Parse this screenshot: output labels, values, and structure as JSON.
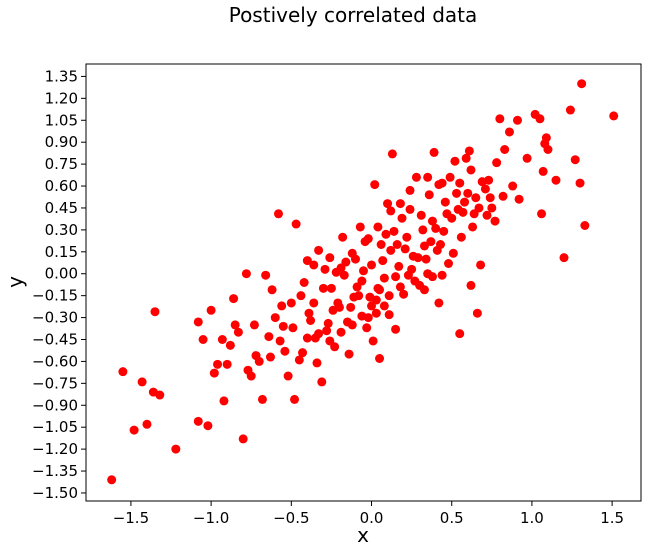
{
  "chart_data": {
    "type": "scatter",
    "title": "Postively correlated data",
    "xlabel": "x",
    "ylabel": "y",
    "xlim": [
      -1.78,
      1.68
    ],
    "ylim": [
      -1.555,
      1.435
    ],
    "xticks": [
      -1.5,
      -1.0,
      -0.5,
      0.0,
      0.5,
      1.0,
      1.5
    ],
    "xtick_labels": [
      "−1.5",
      "−1.0",
      "−0.5",
      "0.0",
      "0.5",
      "1.0",
      "1.5"
    ],
    "yticks": [
      -1.5,
      -1.35,
      -1.2,
      -1.05,
      -0.9,
      -0.75,
      -0.6,
      -0.45,
      -0.3,
      -0.15,
      0.0,
      0.15,
      0.3,
      0.45,
      0.6,
      0.75,
      0.9,
      1.05,
      1.2,
      1.35
    ],
    "ytick_labels": [
      "−1.50",
      "−1.35",
      "−1.20",
      "−1.05",
      "−0.90",
      "−0.75",
      "−0.60",
      "−0.45",
      "−0.30",
      "−0.15",
      "0.00",
      "0.15",
      "0.30",
      "0.45",
      "0.60",
      "0.75",
      "0.90",
      "1.05",
      "1.20",
      "1.35"
    ],
    "grid": false,
    "marker_color": "#ff0000",
    "points": [
      [
        -1.62,
        -1.41
      ],
      [
        -1.55,
        -0.67
      ],
      [
        -1.48,
        -1.07
      ],
      [
        -1.43,
        -0.74
      ],
      [
        -1.4,
        -1.03
      ],
      [
        -1.36,
        -0.81
      ],
      [
        -1.32,
        -0.83
      ],
      [
        -1.35,
        -0.26
      ],
      [
        -1.22,
        -1.2
      ],
      [
        -1.08,
        -1.01
      ],
      [
        -1.02,
        -1.04
      ],
      [
        -1.08,
        -0.33
      ],
      [
        -1.05,
        -0.45
      ],
      [
        -1.0,
        -0.25
      ],
      [
        -0.96,
        -0.62
      ],
      [
        -0.93,
        -0.45
      ],
      [
        -0.92,
        -0.87
      ],
      [
        -0.88,
        -0.49
      ],
      [
        -0.86,
        -0.17
      ],
      [
        -0.85,
        -0.35
      ],
      [
        -0.8,
        -1.13
      ],
      [
        -0.78,
        0.0
      ],
      [
        -0.75,
        -0.7
      ],
      [
        -0.72,
        -0.56
      ],
      [
        -0.68,
        -0.86
      ],
      [
        -0.66,
        -0.01
      ],
      [
        -0.64,
        -0.43
      ],
      [
        -0.62,
        -0.11
      ],
      [
        -0.58,
        0.41
      ],
      [
        -0.56,
        -0.22
      ],
      [
        -0.55,
        -0.36
      ],
      [
        -0.54,
        -0.53
      ],
      [
        -0.52,
        -0.7
      ],
      [
        -0.48,
        -0.86
      ],
      [
        -0.47,
        0.34
      ],
      [
        -0.45,
        -0.59
      ],
      [
        -0.42,
        -0.06
      ],
      [
        -0.4,
        -0.44
      ],
      [
        -0.38,
        -0.32
      ],
      [
        -0.36,
        0.06
      ],
      [
        -0.34,
        -0.61
      ],
      [
        -0.33,
        -0.41
      ],
      [
        -0.31,
        -0.74
      ],
      [
        -0.29,
        0.03
      ],
      [
        -0.27,
        -0.34
      ],
      [
        -0.25,
        -0.1
      ],
      [
        -0.23,
        -0.5
      ],
      [
        -0.22,
        0.01
      ],
      [
        -0.2,
        -0.23
      ],
      [
        -0.18,
        0.25
      ],
      [
        -0.16,
        0.08
      ],
      [
        -0.14,
        -0.55
      ],
      [
        -0.12,
        -0.35
      ],
      [
        -0.1,
        0.1
      ],
      [
        -0.08,
        -0.15
      ],
      [
        -0.07,
        0.32
      ],
      [
        -0.06,
        -0.05
      ],
      [
        -0.04,
        0.22
      ],
      [
        -0.02,
        -0.3
      ],
      [
        0.0,
        0.06
      ],
      [
        0.01,
        -0.46
      ],
      [
        0.02,
        0.61
      ],
      [
        0.03,
        -0.18
      ],
      [
        0.05,
        -0.58
      ],
      [
        0.06,
        0.2
      ],
      [
        0.08,
        -0.03
      ],
      [
        0.1,
        0.48
      ],
      [
        0.11,
        -0.28
      ],
      [
        0.12,
        0.16
      ],
      [
        0.13,
        0.82
      ],
      [
        0.15,
        -0.38
      ],
      [
        0.17,
        0.05
      ],
      [
        0.19,
        0.38
      ],
      [
        0.2,
        -0.14
      ],
      [
        0.22,
        0.25
      ],
      [
        0.24,
        0.57
      ],
      [
        0.26,
        0.12
      ],
      [
        0.28,
        0.66
      ],
      [
        0.3,
        -0.08
      ],
      [
        0.31,
        0.4
      ],
      [
        0.33,
        0.19
      ],
      [
        0.35,
        0.0
      ],
      [
        0.36,
        0.54
      ],
      [
        0.38,
        0.36
      ],
      [
        0.39,
        0.83
      ],
      [
        0.41,
        0.16
      ],
      [
        0.42,
        -0.2
      ],
      [
        0.44,
        0.62
      ],
      [
        0.45,
        0.29
      ],
      [
        0.46,
        0.49
      ],
      [
        0.48,
        0.07
      ],
      [
        0.5,
        0.38
      ],
      [
        0.52,
        0.77
      ],
      [
        0.53,
        0.55
      ],
      [
        0.55,
        -0.41
      ],
      [
        0.56,
        0.25
      ],
      [
        0.58,
        0.49
      ],
      [
        0.59,
        0.79
      ],
      [
        0.61,
        0.84
      ],
      [
        0.62,
        -0.08
      ],
      [
        0.63,
        0.32
      ],
      [
        0.65,
        0.52
      ],
      [
        0.66,
        -0.27
      ],
      [
        0.68,
        0.06
      ],
      [
        0.69,
        0.63
      ],
      [
        0.72,
        0.4
      ],
      [
        0.73,
        0.64
      ],
      [
        0.75,
        0.45
      ],
      [
        0.77,
        0.36
      ],
      [
        0.78,
        0.76
      ],
      [
        0.8,
        1.06
      ],
      [
        0.82,
        0.53
      ],
      [
        0.83,
        0.85
      ],
      [
        0.86,
        0.97
      ],
      [
        0.88,
        0.6
      ],
      [
        0.91,
        1.05
      ],
      [
        0.92,
        0.51
      ],
      [
        0.97,
        0.79
      ],
      [
        1.02,
        1.09
      ],
      [
        1.05,
        1.06
      ],
      [
        1.06,
        0.41
      ],
      [
        1.07,
        0.7
      ],
      [
        1.08,
        0.89
      ],
      [
        1.09,
        0.93
      ],
      [
        1.1,
        0.85
      ],
      [
        1.15,
        0.64
      ],
      [
        1.2,
        0.11
      ],
      [
        1.24,
        1.12
      ],
      [
        1.27,
        0.78
      ],
      [
        1.3,
        0.62
      ],
      [
        1.31,
        1.3
      ],
      [
        1.33,
        0.33
      ],
      [
        1.51,
        1.08
      ],
      [
        -0.7,
        -0.6
      ],
      [
        -0.6,
        -0.3
      ],
      [
        -0.5,
        -0.2
      ],
      [
        -0.44,
        -0.15
      ],
      [
        -0.36,
        -0.2
      ],
      [
        -0.3,
        -0.1
      ],
      [
        -0.26,
        -0.46
      ],
      [
        -0.21,
        -0.2
      ],
      [
        -0.17,
        -0.01
      ],
      [
        -0.13,
        -0.23
      ],
      [
        -0.09,
        -0.09
      ],
      [
        -0.05,
        0.02
      ],
      [
        -0.01,
        -0.16
      ],
      [
        0.04,
        -0.1
      ],
      [
        0.07,
        0.09
      ],
      [
        0.09,
        0.27
      ],
      [
        0.14,
        0.29
      ],
      [
        0.16,
        0.2
      ],
      [
        0.21,
        0.17
      ],
      [
        0.25,
        0.03
      ],
      [
        0.29,
        0.11
      ],
      [
        0.32,
        0.3
      ],
      [
        0.34,
        0.1
      ],
      [
        0.37,
        0.22
      ],
      [
        0.4,
        0.31
      ],
      [
        0.43,
        0.2
      ],
      [
        0.47,
        0.41
      ],
      [
        0.51,
        0.14
      ],
      [
        0.54,
        0.44
      ],
      [
        0.57,
        0.42
      ],
      [
        0.6,
        0.55
      ],
      [
        0.64,
        0.41
      ],
      [
        0.67,
        0.45
      ],
      [
        0.71,
        0.58
      ],
      [
        0.74,
        0.52
      ],
      [
        -0.98,
        -0.68
      ],
      [
        -0.9,
        -0.62
      ],
      [
        -0.83,
        -0.4
      ],
      [
        -0.77,
        -0.66
      ],
      [
        -0.73,
        -0.35
      ],
      [
        -0.63,
        -0.57
      ],
      [
        -0.57,
        -0.46
      ],
      [
        -0.49,
        -0.37
      ],
      [
        -0.43,
        -0.54
      ],
      [
        -0.39,
        -0.27
      ],
      [
        -0.35,
        -0.44
      ],
      [
        -0.28,
        -0.39
      ],
      [
        -0.24,
        -0.25
      ],
      [
        -0.19,
        -0.4
      ],
      [
        -0.15,
        -0.33
      ],
      [
        -0.11,
        -0.16
      ],
      [
        -0.06,
        -0.29
      ],
      [
        -0.03,
        -0.37
      ],
      [
        0.0,
        -0.22
      ],
      [
        0.03,
        -0.27
      ],
      [
        0.05,
        -0.11
      ],
      [
        0.08,
        -0.22
      ],
      [
        0.11,
        -0.15
      ],
      [
        0.15,
        -0.02
      ],
      [
        0.18,
        -0.09
      ],
      [
        0.23,
        -0.01
      ],
      [
        0.27,
        -0.05
      ],
      [
        0.33,
        -0.11
      ],
      [
        0.38,
        -0.02
      ],
      [
        0.44,
        -0.01
      ],
      [
        -0.4,
        0.09
      ],
      [
        -0.33,
        0.16
      ],
      [
        -0.26,
        0.11
      ],
      [
        -0.19,
        0.04
      ],
      [
        -0.12,
        0.14
      ],
      [
        -0.02,
        0.24
      ],
      [
        0.04,
        0.32
      ],
      [
        0.12,
        0.43
      ],
      [
        0.18,
        0.48
      ],
      [
        0.24,
        0.44
      ],
      [
        0.35,
        0.66
      ],
      [
        0.42,
        0.61
      ],
      [
        0.49,
        0.66
      ],
      [
        0.55,
        0.62
      ],
      [
        0.62,
        0.71
      ]
    ]
  }
}
